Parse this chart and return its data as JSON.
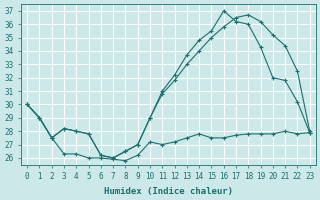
{
  "xlabel": "Humidex (Indice chaleur)",
  "bg_color": "#cce8e8",
  "line_color": "#1a7070",
  "grid_color": "#ffffff",
  "xlim": [
    -0.5,
    23.5
  ],
  "ylim": [
    25.5,
    37.5
  ],
  "yticks": [
    26,
    27,
    28,
    29,
    30,
    31,
    32,
    33,
    34,
    35,
    36,
    37
  ],
  "xticks": [
    0,
    1,
    2,
    3,
    4,
    5,
    6,
    7,
    8,
    9,
    10,
    11,
    12,
    13,
    14,
    15,
    16,
    17,
    18,
    19,
    20,
    21,
    22,
    23
  ],
  "line1_x": [
    0,
    1,
    2,
    3,
    4,
    5,
    6,
    7,
    8,
    9,
    10,
    11,
    12,
    13,
    14,
    15,
    16,
    17,
    18,
    19,
    20,
    21,
    22,
    23
  ],
  "line1_y": [
    30.0,
    29.0,
    27.5,
    28.2,
    28.0,
    27.8,
    26.2,
    26.0,
    26.5,
    27.0,
    29.0,
    31.0,
    32.2,
    33.7,
    34.8,
    35.5,
    37.0,
    36.2,
    36.0,
    34.3,
    32.0,
    31.8,
    30.2,
    27.9
  ],
  "line2_x": [
    0,
    1,
    2,
    3,
    4,
    5,
    6,
    7,
    8,
    9,
    10,
    11,
    12,
    13,
    14,
    15,
    16,
    17,
    18,
    19,
    20,
    21,
    22,
    23
  ],
  "line2_y": [
    30.0,
    29.0,
    27.5,
    28.2,
    28.0,
    27.8,
    26.2,
    26.0,
    26.5,
    27.0,
    29.0,
    30.8,
    31.8,
    33.0,
    34.0,
    35.0,
    35.8,
    36.5,
    36.7,
    36.2,
    35.2,
    34.4,
    32.5,
    28.0
  ],
  "line3_x": [
    0,
    1,
    2,
    3,
    4,
    5,
    6,
    7,
    8,
    9,
    10,
    11,
    12,
    13,
    14,
    15,
    16,
    17,
    18,
    19,
    20,
    21,
    22,
    23
  ],
  "line3_y": [
    30.0,
    29.0,
    27.5,
    26.3,
    26.3,
    26.0,
    26.0,
    25.9,
    25.8,
    26.2,
    27.2,
    27.0,
    27.2,
    27.5,
    27.8,
    27.5,
    27.5,
    27.7,
    27.8,
    27.8,
    27.8,
    28.0,
    27.8,
    27.9
  ]
}
